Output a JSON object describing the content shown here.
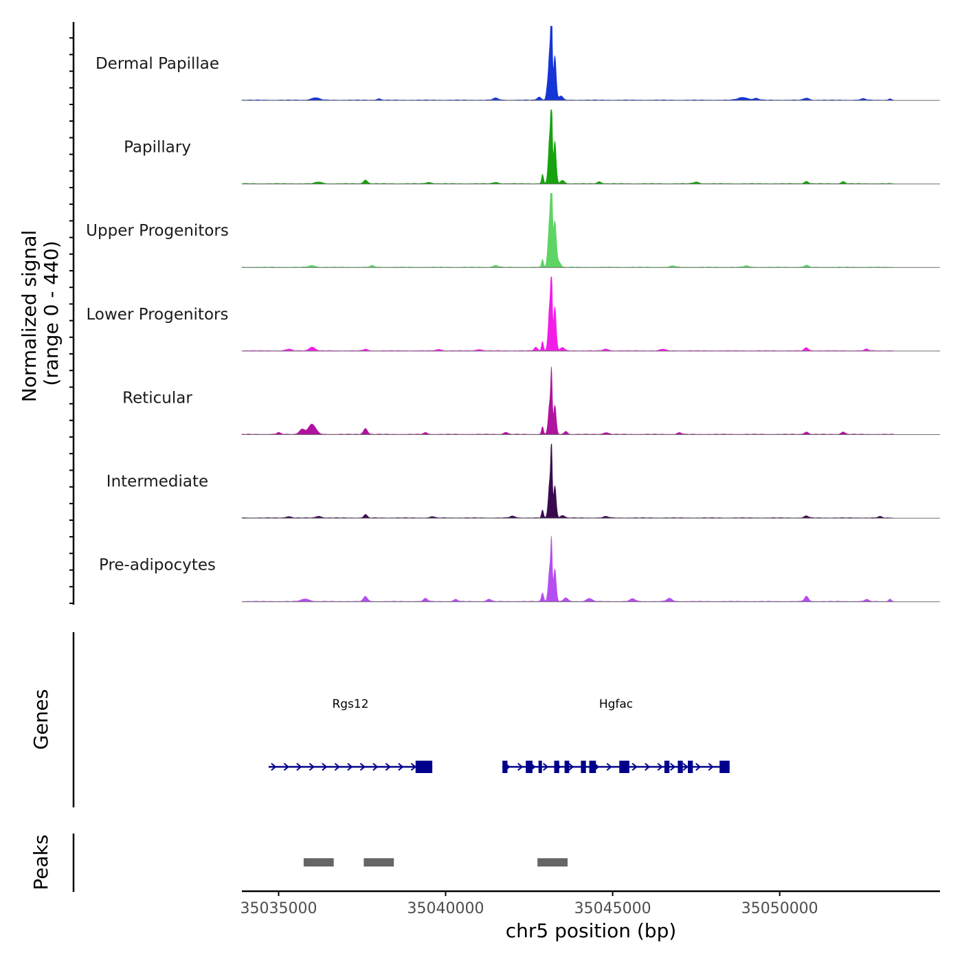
{
  "chart_data": {
    "type": "area",
    "chromosome": "chr5",
    "xlabel": "chr5 position (bp)",
    "xlim": [
      35033900,
      35054800
    ],
    "x_ticks": [
      35035000,
      35040000,
      35045000,
      35050000
    ],
    "x_tick_labels": [
      "35035000",
      "35040000",
      "35045000",
      "35050000"
    ],
    "coverage_panel": {
      "ylabel_line1": "Normalized signal",
      "ylabel_line2": "(range 0 - 440)",
      "ylim": [
        0,
        440
      ],
      "x_extent": [
        35033900,
        35053400
      ]
    },
    "tracks": [
      {
        "name": "Dermal Papillae",
        "color": "#1536d6",
        "peaks": [
          {
            "x": 35043170,
            "y": 440,
            "w": 22
          },
          {
            "x": 35043120,
            "y": 300,
            "w": 45
          },
          {
            "x": 35043270,
            "y": 260,
            "w": 40
          },
          {
            "x": 35043030,
            "y": 40,
            "w": 30
          },
          {
            "x": 35043450,
            "y": 25,
            "w": 60
          },
          {
            "x": 35042800,
            "y": 18,
            "w": 60
          },
          {
            "x": 35036100,
            "y": 14,
            "w": 120
          },
          {
            "x": 35038000,
            "y": 8,
            "w": 60
          },
          {
            "x": 35041500,
            "y": 12,
            "w": 80
          },
          {
            "x": 35048900,
            "y": 16,
            "w": 150
          },
          {
            "x": 35049300,
            "y": 10,
            "w": 80
          },
          {
            "x": 35050800,
            "y": 12,
            "w": 80
          },
          {
            "x": 35052500,
            "y": 8,
            "w": 80
          },
          {
            "x": 35053300,
            "y": 8,
            "w": 40
          }
        ]
      },
      {
        "name": "Papillary",
        "color": "#17a30f",
        "peaks": [
          {
            "x": 35043170,
            "y": 395,
            "w": 22
          },
          {
            "x": 35043120,
            "y": 290,
            "w": 45
          },
          {
            "x": 35043270,
            "y": 250,
            "w": 40
          },
          {
            "x": 35042900,
            "y": 55,
            "w": 30
          },
          {
            "x": 35043500,
            "y": 20,
            "w": 60
          },
          {
            "x": 35037600,
            "y": 22,
            "w": 60
          },
          {
            "x": 35036200,
            "y": 10,
            "w": 100
          },
          {
            "x": 35039500,
            "y": 8,
            "w": 80
          },
          {
            "x": 35041500,
            "y": 8,
            "w": 80
          },
          {
            "x": 35044600,
            "y": 12,
            "w": 60
          },
          {
            "x": 35047500,
            "y": 10,
            "w": 80
          },
          {
            "x": 35050800,
            "y": 14,
            "w": 60
          },
          {
            "x": 35051900,
            "y": 12,
            "w": 60
          }
        ]
      },
      {
        "name": "Upper Progenitors",
        "color": "#5ed464",
        "peaks": [
          {
            "x": 35043170,
            "y": 370,
            "w": 25
          },
          {
            "x": 35043120,
            "y": 300,
            "w": 50
          },
          {
            "x": 35043270,
            "y": 270,
            "w": 45
          },
          {
            "x": 35042900,
            "y": 45,
            "w": 30
          },
          {
            "x": 35043400,
            "y": 30,
            "w": 50
          },
          {
            "x": 35036000,
            "y": 10,
            "w": 100
          },
          {
            "x": 35037800,
            "y": 10,
            "w": 60
          },
          {
            "x": 35041500,
            "y": 10,
            "w": 80
          },
          {
            "x": 35046800,
            "y": 8,
            "w": 80
          },
          {
            "x": 35049000,
            "y": 8,
            "w": 80
          },
          {
            "x": 35050800,
            "y": 12,
            "w": 60
          }
        ]
      },
      {
        "name": "Lower Progenitors",
        "color": "#f21ee8",
        "peaks": [
          {
            "x": 35043170,
            "y": 375,
            "w": 22
          },
          {
            "x": 35043120,
            "y": 280,
            "w": 45
          },
          {
            "x": 35043270,
            "y": 260,
            "w": 40
          },
          {
            "x": 35042900,
            "y": 55,
            "w": 30
          },
          {
            "x": 35042700,
            "y": 20,
            "w": 50
          },
          {
            "x": 35043500,
            "y": 20,
            "w": 60
          },
          {
            "x": 35036000,
            "y": 22,
            "w": 90
          },
          {
            "x": 35035300,
            "y": 10,
            "w": 80
          },
          {
            "x": 35037600,
            "y": 10,
            "w": 60
          },
          {
            "x": 35039800,
            "y": 8,
            "w": 80
          },
          {
            "x": 35041000,
            "y": 8,
            "w": 80
          },
          {
            "x": 35044800,
            "y": 10,
            "w": 80
          },
          {
            "x": 35046500,
            "y": 10,
            "w": 80
          },
          {
            "x": 35050800,
            "y": 18,
            "w": 60
          },
          {
            "x": 35052600,
            "y": 10,
            "w": 60
          }
        ]
      },
      {
        "name": "Reticular",
        "color": "#b0139f",
        "peaks": [
          {
            "x": 35043170,
            "y": 290,
            "w": 22
          },
          {
            "x": 35043120,
            "y": 190,
            "w": 45
          },
          {
            "x": 35043270,
            "y": 170,
            "w": 40
          },
          {
            "x": 35042900,
            "y": 45,
            "w": 30
          },
          {
            "x": 35043600,
            "y": 18,
            "w": 50
          },
          {
            "x": 35036000,
            "y": 60,
            "w": 110
          },
          {
            "x": 35035700,
            "y": 30,
            "w": 80
          },
          {
            "x": 35037600,
            "y": 35,
            "w": 60
          },
          {
            "x": 35035000,
            "y": 10,
            "w": 60
          },
          {
            "x": 35039400,
            "y": 10,
            "w": 60
          },
          {
            "x": 35041800,
            "y": 12,
            "w": 60
          },
          {
            "x": 35044800,
            "y": 10,
            "w": 80
          },
          {
            "x": 35047000,
            "y": 10,
            "w": 60
          },
          {
            "x": 35050800,
            "y": 14,
            "w": 60
          },
          {
            "x": 35051900,
            "y": 14,
            "w": 60
          }
        ]
      },
      {
        "name": "Intermediate",
        "color": "#3a0a4e",
        "peaks": [
          {
            "x": 35043170,
            "y": 345,
            "w": 22
          },
          {
            "x": 35043120,
            "y": 220,
            "w": 45
          },
          {
            "x": 35043270,
            "y": 190,
            "w": 40
          },
          {
            "x": 35042900,
            "y": 45,
            "w": 30
          },
          {
            "x": 35043500,
            "y": 15,
            "w": 60
          },
          {
            "x": 35037600,
            "y": 20,
            "w": 50
          },
          {
            "x": 35036200,
            "y": 10,
            "w": 80
          },
          {
            "x": 35035300,
            "y": 8,
            "w": 80
          },
          {
            "x": 35039600,
            "y": 8,
            "w": 60
          },
          {
            "x": 35042000,
            "y": 10,
            "w": 80
          },
          {
            "x": 35044800,
            "y": 8,
            "w": 80
          },
          {
            "x": 35050800,
            "y": 12,
            "w": 60
          },
          {
            "x": 35053000,
            "y": 8,
            "w": 60
          }
        ]
      },
      {
        "name": "Pre-adipocytes",
        "color": "#b54df0",
        "peaks": [
          {
            "x": 35043170,
            "y": 270,
            "w": 22
          },
          {
            "x": 35043120,
            "y": 200,
            "w": 45
          },
          {
            "x": 35043270,
            "y": 190,
            "w": 40
          },
          {
            "x": 35042900,
            "y": 50,
            "w": 35
          },
          {
            "x": 35043600,
            "y": 22,
            "w": 60
          },
          {
            "x": 35037600,
            "y": 30,
            "w": 60
          },
          {
            "x": 35035800,
            "y": 15,
            "w": 120
          },
          {
            "x": 35039400,
            "y": 18,
            "w": 60
          },
          {
            "x": 35040300,
            "y": 12,
            "w": 60
          },
          {
            "x": 35041300,
            "y": 14,
            "w": 60
          },
          {
            "x": 35044300,
            "y": 18,
            "w": 80
          },
          {
            "x": 35045600,
            "y": 16,
            "w": 80
          },
          {
            "x": 35046700,
            "y": 18,
            "w": 80
          },
          {
            "x": 35050800,
            "y": 30,
            "w": 60
          },
          {
            "x": 35052600,
            "y": 12,
            "w": 60
          },
          {
            "x": 35053300,
            "y": 14,
            "w": 40
          }
        ]
      }
    ],
    "genes_panel": {
      "ylabel": "Genes",
      "color": "#00008b",
      "genes": [
        {
          "name": "Rgs12",
          "start": 35034700,
          "end": 35039600,
          "strand": "+",
          "exons": [
            [
              35039100,
              35039600
            ]
          ]
        },
        {
          "name": "Hgfac",
          "start": 35041700,
          "end": 35048500,
          "strand": "+",
          "exons": [
            [
              35041700,
              35041850
            ],
            [
              35042400,
              35042600
            ],
            [
              35042780,
              35042880
            ],
            [
              35043250,
              35043400
            ],
            [
              35043560,
              35043700
            ],
            [
              35044050,
              35044200
            ],
            [
              35044300,
              35044500
            ],
            [
              35045200,
              35045500
            ],
            [
              35046550,
              35046700
            ],
            [
              35046950,
              35047100
            ],
            [
              35047250,
              35047400
            ],
            [
              35048200,
              35048500
            ]
          ]
        }
      ]
    },
    "peaks_panel": {
      "ylabel": "Peaks",
      "color": "#666666",
      "regions": [
        [
          35035750,
          35036650
        ],
        [
          35037550,
          35038450
        ],
        [
          35042750,
          35043650
        ]
      ]
    }
  }
}
